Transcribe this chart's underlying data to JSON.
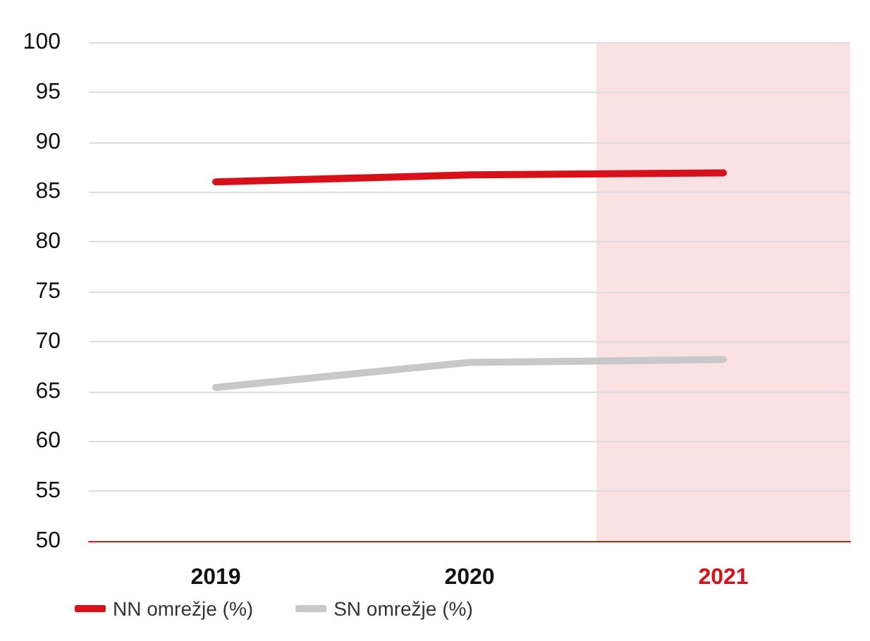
{
  "chart_data": {
    "type": "line",
    "categories": [
      "2019",
      "2020",
      "2021"
    ],
    "series": [
      {
        "name": "NN omrežje (%)",
        "color": "#d7101a",
        "values": [
          86.0,
          86.7,
          86.9
        ]
      },
      {
        "name": "SN omrežje (%)",
        "color": "#c8c8c8",
        "values": [
          65.4,
          67.9,
          68.2
        ]
      }
    ],
    "ylim": [
      50,
      100
    ],
    "yticks": [
      50,
      55,
      60,
      65,
      70,
      75,
      80,
      85,
      90,
      95,
      100
    ],
    "grid": "y",
    "legend": "bottom left",
    "marker": "none",
    "bands": [
      {
        "axis": "x",
        "from": "2021",
        "to": "2021",
        "color": "#d7101a"
      }
    ]
  }
}
